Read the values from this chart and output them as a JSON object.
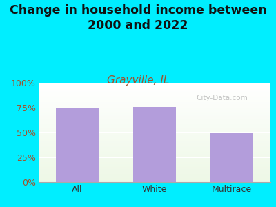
{
  "title": "Change in household income between\n2000 and 2022",
  "subtitle": "Grayville, IL",
  "categories": [
    "All",
    "White",
    "Multirace"
  ],
  "values": [
    75,
    76,
    49
  ],
  "bar_color": "#b39ddb",
  "title_fontsize": 12.5,
  "subtitle_fontsize": 11,
  "subtitle_color": "#a0522d",
  "title_color": "#111111",
  "background_color": "#00eeff",
  "yticks": [
    0,
    25,
    50,
    75,
    100
  ],
  "ytick_labels": [
    "0%",
    "25%",
    "50%",
    "75%",
    "100%"
  ],
  "tick_color": "#a0522d",
  "xtick_color": "#333333",
  "axis_label_fontsize": 9,
  "watermark": "City-Data.com"
}
